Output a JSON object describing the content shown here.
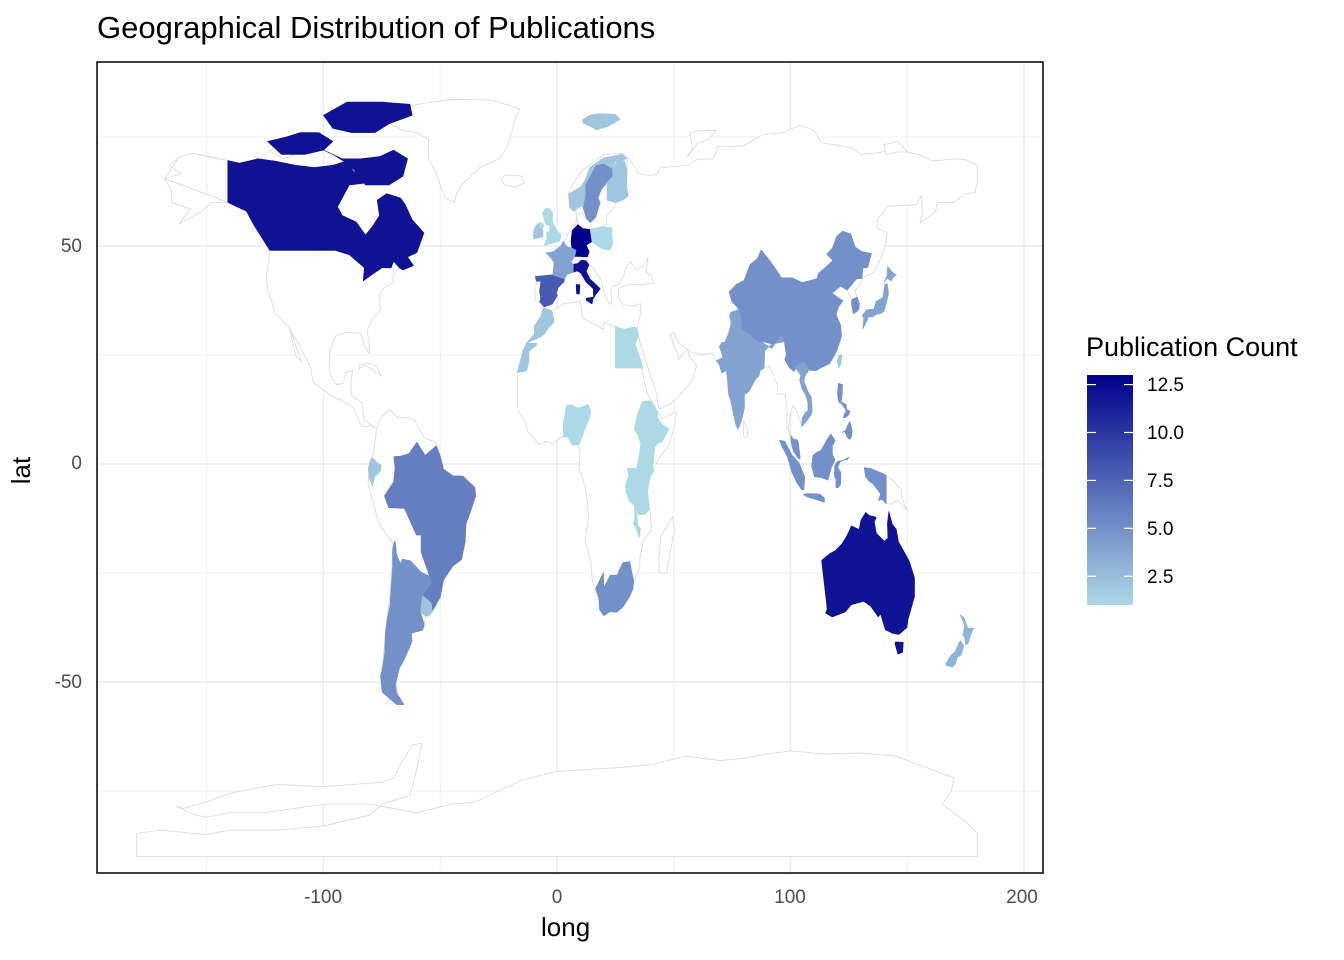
{
  "chart_data": {
    "type": "map",
    "title": "Geographical Distribution of Publications",
    "xlabel": "long",
    "ylabel": "lat",
    "xlim": [
      -195,
      210
    ],
    "ylim": [
      -94,
      92
    ],
    "x_ticks": [
      -100,
      0,
      100,
      200
    ],
    "y_ticks": [
      -50,
      0,
      50
    ],
    "grid": true,
    "legend": {
      "title": "Publication Count",
      "position": "right",
      "min": 1,
      "max": 13,
      "ticks": [
        12.5,
        10.0,
        7.5,
        5.0,
        2.5
      ],
      "tick_labels": [
        "12.5",
        "10.0",
        "7.5",
        "5.0",
        "2.5"
      ],
      "low_color": "#add8e6",
      "high_color": "#00008b"
    },
    "regions": [
      {
        "name": "Canada",
        "value": 12
      },
      {
        "name": "Germany",
        "value": 13
      },
      {
        "name": "Italy",
        "value": 12
      },
      {
        "name": "Spain",
        "value": 8
      },
      {
        "name": "France",
        "value": 4
      },
      {
        "name": "Sweden",
        "value": 5
      },
      {
        "name": "Norway",
        "value": 2
      },
      {
        "name": "Finland",
        "value": 2
      },
      {
        "name": "Poland",
        "value": 1
      },
      {
        "name": "Ireland",
        "value": 2
      },
      {
        "name": "United Kingdom",
        "value": 1
      },
      {
        "name": "Morocco",
        "value": 2
      },
      {
        "name": "Egypt",
        "value": 1
      },
      {
        "name": "Nigeria",
        "value": 1
      },
      {
        "name": "Ethiopia",
        "value": 1
      },
      {
        "name": "Kenya",
        "value": 1
      },
      {
        "name": "Tanzania",
        "value": 1
      },
      {
        "name": "Malawi",
        "value": 1
      },
      {
        "name": "South Africa",
        "value": 5
      },
      {
        "name": "Brazil",
        "value": 6
      },
      {
        "name": "Argentina",
        "value": 5
      },
      {
        "name": "Chile",
        "value": 5
      },
      {
        "name": "Uruguay",
        "value": 2
      },
      {
        "name": "Ecuador",
        "value": 2
      },
      {
        "name": "China",
        "value": 5
      },
      {
        "name": "India",
        "value": 4
      },
      {
        "name": "Japan",
        "value": 4
      },
      {
        "name": "South Korea",
        "value": 5
      },
      {
        "name": "Taiwan",
        "value": 2
      },
      {
        "name": "Vietnam",
        "value": 4
      },
      {
        "name": "Indonesia",
        "value": 5
      },
      {
        "name": "Malaysia",
        "value": 5
      },
      {
        "name": "Philippines",
        "value": 5
      },
      {
        "name": "Svalbard",
        "value": 2
      },
      {
        "name": "Australia",
        "value": 12
      },
      {
        "name": "New Zealand",
        "value": 3
      }
    ]
  }
}
